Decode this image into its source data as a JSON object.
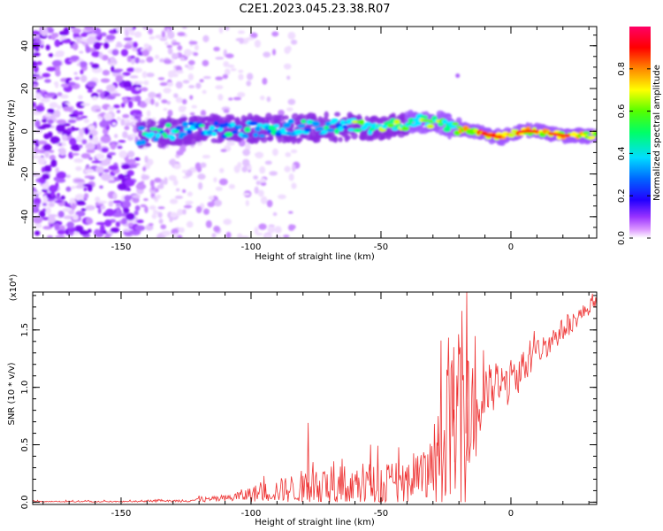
{
  "title": "C2E1.2023.045.23.38.R07",
  "chart_data": [
    {
      "type": "heatmap",
      "xlabel": "Height of straight line (km)",
      "ylabel": "Frequency (Hz)",
      "xlim": [
        -184,
        33
      ],
      "ylim": [
        -50,
        49
      ],
      "xticks": [
        -150,
        -100,
        -50,
        0
      ],
      "xtick_labels": [
        "-150",
        "-100",
        "-50",
        "0"
      ],
      "yticks": [
        -40,
        -20,
        0,
        20,
        40
      ],
      "ytick_labels": [
        "-40",
        "-20",
        "0",
        "20",
        "40"
      ],
      "colorbar": {
        "label": "Normalized spectral amplitude",
        "range": [
          0,
          1
        ],
        "ticks": [
          0.0,
          0.2,
          0.4,
          0.6,
          0.8
        ],
        "tick_labels": [
          "0.0",
          "0.2",
          "0.4",
          "0.6",
          "0.8"
        ],
        "colors": [
          "#ffffff",
          "#cc66ff",
          "#7700ee",
          "#0000ff",
          "#00ffff",
          "#00ff00",
          "#ffff00",
          "#ff8800",
          "#ff0000",
          "#ff0066"
        ]
      },
      "ridge": {
        "x": [
          -142,
          -130,
          -110,
          -90,
          -70,
          -60,
          -50,
          -40,
          -33,
          -25,
          -15,
          -8,
          -3,
          0,
          5,
          10,
          20,
          33
        ],
        "y": [
          -2,
          0,
          1,
          1,
          2,
          2,
          1,
          4,
          5,
          3,
          0,
          -2,
          -3,
          -1,
          0,
          0,
          -2,
          -2
        ]
      }
    },
    {
      "type": "line",
      "xlabel": "Height of straight line (km)",
      "ylabel": "SNR (10 * v/v)",
      "scale_label": "(x10⁴)",
      "xlim": [
        -184,
        33
      ],
      "ylim": [
        -0.02,
        1.83
      ],
      "xticks": [
        -150,
        -100,
        -50,
        0
      ],
      "xtick_labels": [
        "-150",
        "-100",
        "-50",
        "0"
      ],
      "yticks": [
        0.0,
        0.5,
        1.0,
        1.5
      ],
      "ytick_labels": [
        "0.0",
        "0.5",
        "1.0",
        "1.5"
      ],
      "series": [
        {
          "color": "#ee3333",
          "trend": {
            "x": [
              -184,
              -150,
              -130,
              -110,
              -100,
              -90,
              -80,
              -60,
              -40,
              -32,
              -29,
              -25,
              -20,
              -15,
              -10,
              0,
              10,
              20,
              33
            ],
            "baseline": [
              0.0,
              0.0,
              0.01,
              0.03,
              0.07,
              0.1,
              0.13,
              0.14,
              0.16,
              0.2,
              0.35,
              0.55,
              0.6,
              0.6,
              0.95,
              1.05,
              1.3,
              1.5,
              1.75
            ],
            "spread": [
              0.01,
              0.01,
              0.01,
              0.03,
              0.07,
              0.1,
              0.15,
              0.2,
              0.22,
              0.25,
              0.4,
              0.65,
              0.7,
              0.6,
              0.25,
              0.2,
              0.12,
              0.1,
              0.05
            ]
          },
          "peaks": [
            [
              -78,
              0.69
            ],
            [
              -17,
              1.83
            ],
            [
              -22,
              1.35
            ],
            [
              -28,
              0.75
            ],
            [
              -54,
              0.5
            ]
          ]
        }
      ]
    }
  ]
}
